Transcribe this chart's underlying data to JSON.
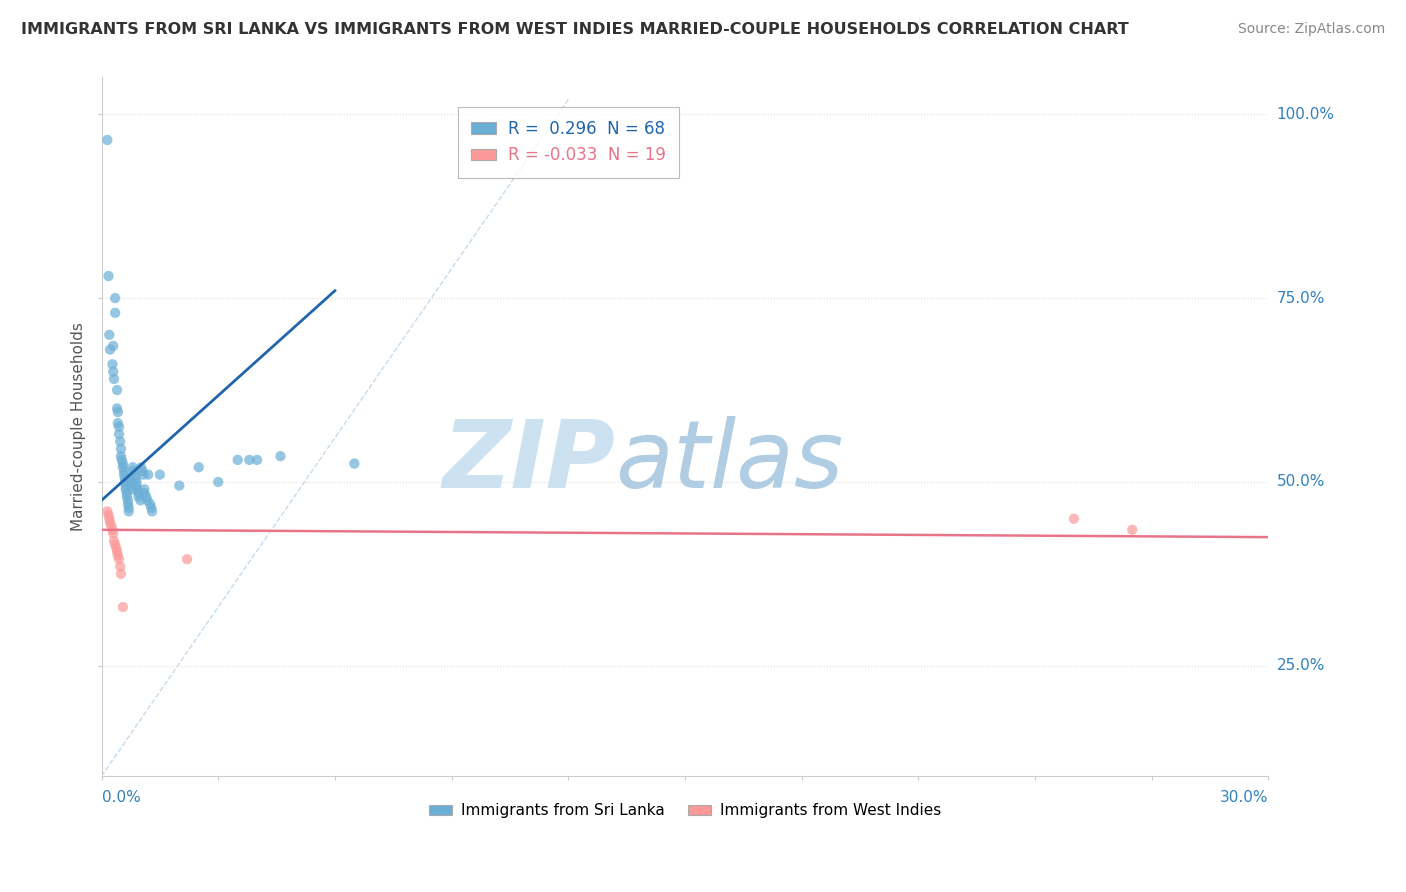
{
  "title": "IMMIGRANTS FROM SRI LANKA VS IMMIGRANTS FROM WEST INDIES MARRIED-COUPLE HOUSEHOLDS CORRELATION CHART",
  "source": "Source: ZipAtlas.com",
  "ylabel_label": "Married-couple Households",
  "legend_sri_lanka": "Immigrants from Sri Lanka",
  "legend_west_indies": "Immigrants from West Indies",
  "R_sri": 0.296,
  "N_sri": 68,
  "R_wi": -0.033,
  "N_wi": 19,
  "xlim": [
    0.0,
    0.3
  ],
  "ylim": [
    0.1,
    1.05
  ],
  "sri_lanka_dots": [
    [
      0.0015,
      0.965
    ],
    [
      0.0018,
      0.78
    ],
    [
      0.002,
      0.7
    ],
    [
      0.0022,
      0.68
    ],
    [
      0.0028,
      0.66
    ],
    [
      0.003,
      0.65
    ],
    [
      0.003,
      0.685
    ],
    [
      0.0032,
      0.64
    ],
    [
      0.0035,
      0.75
    ],
    [
      0.0035,
      0.73
    ],
    [
      0.004,
      0.625
    ],
    [
      0.004,
      0.6
    ],
    [
      0.0042,
      0.595
    ],
    [
      0.0042,
      0.58
    ],
    [
      0.0045,
      0.575
    ],
    [
      0.0045,
      0.565
    ],
    [
      0.0048,
      0.555
    ],
    [
      0.005,
      0.545
    ],
    [
      0.005,
      0.535
    ],
    [
      0.0052,
      0.53
    ],
    [
      0.0055,
      0.525
    ],
    [
      0.0055,
      0.52
    ],
    [
      0.0058,
      0.515
    ],
    [
      0.0058,
      0.51
    ],
    [
      0.006,
      0.505
    ],
    [
      0.006,
      0.5
    ],
    [
      0.0062,
      0.495
    ],
    [
      0.0062,
      0.49
    ],
    [
      0.0065,
      0.485
    ],
    [
      0.0065,
      0.48
    ],
    [
      0.0068,
      0.475
    ],
    [
      0.0068,
      0.47
    ],
    [
      0.007,
      0.465
    ],
    [
      0.007,
      0.46
    ],
    [
      0.0072,
      0.505
    ],
    [
      0.0072,
      0.5
    ],
    [
      0.0075,
      0.495
    ],
    [
      0.0078,
      0.49
    ],
    [
      0.008,
      0.52
    ],
    [
      0.0082,
      0.515
    ],
    [
      0.0085,
      0.51
    ],
    [
      0.0088,
      0.505
    ],
    [
      0.009,
      0.5
    ],
    [
      0.009,
      0.495
    ],
    [
      0.0092,
      0.49
    ],
    [
      0.0095,
      0.485
    ],
    [
      0.0095,
      0.48
    ],
    [
      0.01,
      0.475
    ],
    [
      0.0102,
      0.52
    ],
    [
      0.0105,
      0.515
    ],
    [
      0.0108,
      0.51
    ],
    [
      0.011,
      0.49
    ],
    [
      0.011,
      0.485
    ],
    [
      0.0115,
      0.48
    ],
    [
      0.0118,
      0.475
    ],
    [
      0.012,
      0.51
    ],
    [
      0.0125,
      0.47
    ],
    [
      0.0128,
      0.465
    ],
    [
      0.013,
      0.46
    ],
    [
      0.015,
      0.51
    ],
    [
      0.02,
      0.495
    ],
    [
      0.025,
      0.52
    ],
    [
      0.03,
      0.5
    ],
    [
      0.035,
      0.53
    ],
    [
      0.038,
      0.53
    ],
    [
      0.04,
      0.53
    ],
    [
      0.046,
      0.535
    ],
    [
      0.065,
      0.525
    ]
  ],
  "west_indies_dots": [
    [
      0.0015,
      0.46
    ],
    [
      0.0018,
      0.455
    ],
    [
      0.002,
      0.45
    ],
    [
      0.0022,
      0.445
    ],
    [
      0.0025,
      0.44
    ],
    [
      0.0028,
      0.435
    ],
    [
      0.003,
      0.43
    ],
    [
      0.0032,
      0.42
    ],
    [
      0.0035,
      0.415
    ],
    [
      0.0038,
      0.41
    ],
    [
      0.004,
      0.405
    ],
    [
      0.0042,
      0.4
    ],
    [
      0.0045,
      0.395
    ],
    [
      0.0048,
      0.385
    ],
    [
      0.005,
      0.375
    ],
    [
      0.0055,
      0.33
    ],
    [
      0.022,
      0.395
    ],
    [
      0.25,
      0.45
    ],
    [
      0.265,
      0.435
    ]
  ],
  "sri_lanka_color": "#6baed6",
  "west_indies_color": "#fb9a99",
  "sri_line_color": "#2166ac",
  "wi_line_color": "#e8748a",
  "ref_line_color": "#c6dbef",
  "watermark_zip": "ZIP",
  "watermark_atlas": "atlas",
  "watermark_color_zip": "#d0e8f5",
  "watermark_color_atlas": "#b8d4e8",
  "background_color": "#ffffff",
  "grid_color": "#dddddd",
  "grid_style": "dotted"
}
